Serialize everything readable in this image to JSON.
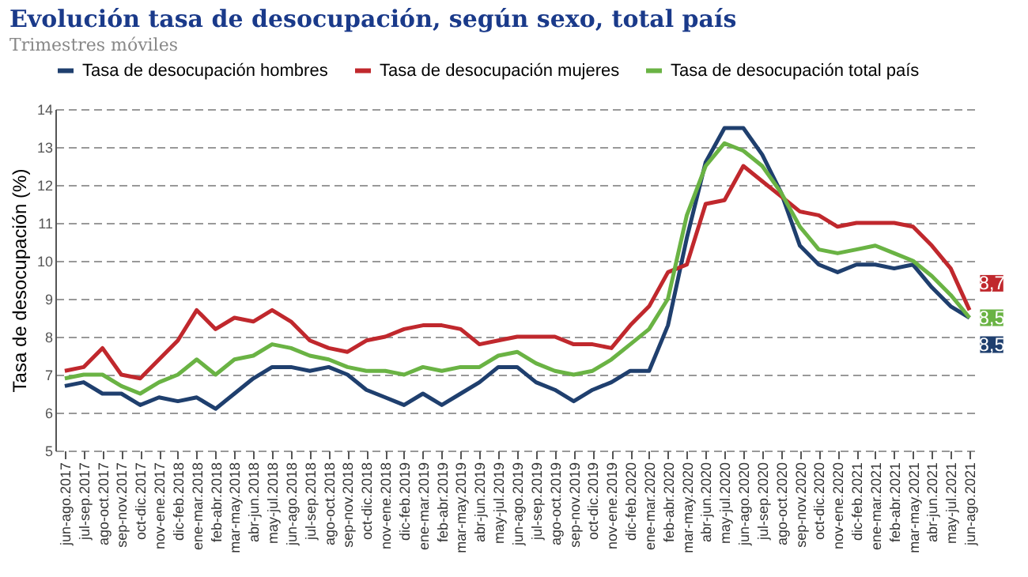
{
  "chart_data": {
    "type": "line",
    "title": "Evolución tasa de desocupación, según sexo, total país",
    "subtitle": "Trimestres móviles",
    "ylabel": "Tasa de desocupación (%)",
    "categories": [
      "jun-ago.2017",
      "jul-sep.2017",
      "ago-oct.2017",
      "sep-nov.2017",
      "oct-dic.2017",
      "nov-ene.2017",
      "dic-feb.2018",
      "ene-mar.2018",
      "feb-abr.2018",
      "mar-may.2018",
      "abr-jun.2018",
      "may-jul.2018",
      "jun-ago.2018",
      "jul-sep.2018",
      "ago-oct.2018",
      "sep-nov.2018",
      "oct-dic.2018",
      "nov-ene.2018",
      "dic-feb.2019",
      "ene-mar.2019",
      "feb-abr.2019",
      "mar-may.2019",
      "abr-jun.2019",
      "may-jul.2019",
      "jun-ago.2019",
      "jul-sep.2019",
      "ago-oct.2019",
      "sep-nov.2019",
      "oct-dic.2019",
      "nov-ene.2019",
      "dic-feb.2020",
      "ene-mar.2020",
      "feb-abr.2020",
      "mar-may.2020",
      "abr-jun.2020",
      "may-jul.2020",
      "jun-ago.2020",
      "jul-sep.2020",
      "ago-oct.2020",
      "sep-nov.2020",
      "oct-dic.2020",
      "nov-ene.2020",
      "dic-feb.2021",
      "ene-mar.2021",
      "feb-abr.2021",
      "mar-may.2021",
      "abr-jun.2021",
      "may-jul.2021",
      "jun-ago.2021"
    ],
    "series": [
      {
        "name": "Tasa de desocupación hombres",
        "color": "#1f3f6e",
        "values": [
          6.7,
          6.8,
          6.5,
          6.5,
          6.2,
          6.4,
          6.3,
          6.4,
          6.1,
          6.5,
          6.9,
          7.2,
          7.2,
          7.1,
          7.2,
          7.0,
          6.6,
          6.4,
          6.2,
          6.5,
          6.2,
          6.5,
          6.8,
          7.2,
          7.2,
          6.8,
          6.6,
          6.3,
          6.6,
          6.8,
          7.1,
          7.1,
          8.3,
          10.6,
          12.6,
          13.5,
          13.5,
          12.8,
          11.8,
          10.4,
          9.9,
          9.7,
          9.9,
          9.9,
          9.8,
          9.9,
          9.3,
          8.8,
          8.5
        ],
        "value_labels": [
          null,
          null,
          null,
          null,
          null,
          null,
          null,
          null,
          null,
          null,
          null,
          null,
          null,
          null,
          null,
          null,
          null,
          null,
          null,
          null,
          null,
          null,
          null,
          null,
          null,
          null,
          null,
          null,
          null,
          null,
          null,
          null,
          null,
          null,
          null,
          null,
          null,
          null,
          null,
          null,
          null,
          null,
          null,
          null,
          null,
          null,
          null,
          null,
          "8,5"
        ]
      },
      {
        "name": "Tasa de desocupación mujeres",
        "color": "#c0282d",
        "values": [
          7.1,
          7.2,
          7.7,
          7.0,
          6.9,
          7.4,
          7.9,
          8.7,
          8.2,
          8.5,
          8.4,
          8.7,
          8.4,
          7.9,
          7.7,
          7.6,
          7.9,
          8.0,
          8.2,
          8.3,
          8.3,
          8.2,
          7.8,
          7.9,
          8.0,
          8.0,
          8.0,
          7.8,
          7.8,
          7.7,
          8.3,
          8.8,
          9.7,
          9.9,
          11.5,
          11.6,
          12.5,
          12.1,
          11.7,
          11.3,
          11.2,
          10.9,
          11.0,
          11.0,
          11.0,
          10.9,
          10.4,
          9.8,
          8.7
        ],
        "value_labels": [
          null,
          null,
          null,
          null,
          null,
          null,
          null,
          null,
          null,
          null,
          null,
          null,
          null,
          null,
          null,
          null,
          null,
          null,
          null,
          null,
          null,
          null,
          null,
          null,
          null,
          null,
          null,
          null,
          null,
          null,
          null,
          null,
          null,
          null,
          null,
          null,
          null,
          null,
          null,
          null,
          null,
          null,
          null,
          null,
          null,
          null,
          null,
          null,
          "8,7"
        ]
      },
      {
        "name": "Tasa de desocupación total país",
        "color": "#6ab344",
        "values": [
          6.9,
          7.0,
          7.0,
          6.7,
          6.5,
          6.8,
          7.0,
          7.4,
          7.0,
          7.4,
          7.5,
          7.8,
          7.7,
          7.5,
          7.4,
          7.2,
          7.1,
          7.1,
          7.0,
          7.2,
          7.1,
          7.2,
          7.2,
          7.5,
          7.6,
          7.3,
          7.1,
          7.0,
          7.1,
          7.4,
          7.8,
          8.2,
          9.0,
          11.2,
          12.5,
          13.1,
          12.9,
          12.5,
          11.8,
          10.9,
          10.3,
          10.2,
          10.3,
          10.4,
          10.2,
          10.0,
          9.6,
          9.1,
          8.5
        ],
        "value_labels": [
          null,
          null,
          null,
          null,
          null,
          null,
          null,
          null,
          null,
          null,
          null,
          null,
          null,
          null,
          null,
          null,
          null,
          null,
          null,
          null,
          null,
          null,
          null,
          null,
          null,
          null,
          null,
          null,
          null,
          null,
          null,
          null,
          null,
          null,
          null,
          null,
          null,
          null,
          null,
          null,
          null,
          null,
          null,
          null,
          null,
          null,
          null,
          null,
          "8,5"
        ]
      }
    ],
    "ylim": [
      5,
      14
    ],
    "yticks": [
      5,
      6,
      7,
      8,
      9,
      10,
      11,
      12,
      13,
      14
    ],
    "grid": "y",
    "legend": "top",
    "line_style": "solid",
    "marker": "none"
  }
}
